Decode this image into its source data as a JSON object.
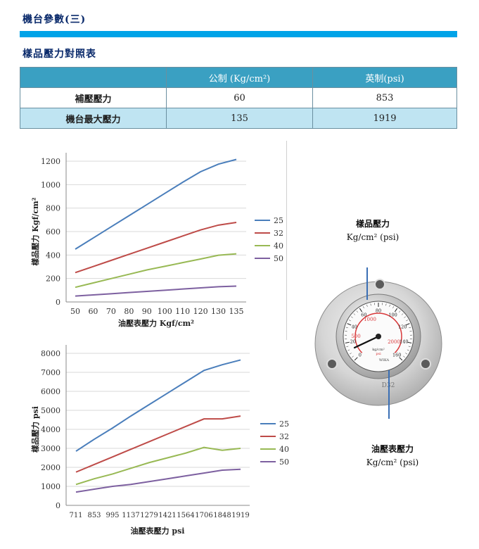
{
  "header": {
    "section_title": "機台參數(三)",
    "sub_title": "樣品壓力對照表"
  },
  "table": {
    "headers": [
      "",
      "公制 (Kg/cm²)",
      "英制(psi)"
    ],
    "rows": [
      {
        "label": "補壓壓力",
        "metric": "60",
        "imperial": "853"
      },
      {
        "label": "機台最大壓力",
        "metric": "135",
        "imperial": "1919"
      }
    ]
  },
  "colors": {
    "s25": "#4a7ebb",
    "s32": "#be4b48",
    "s40": "#98b954",
    "s50": "#7d60a0",
    "accent": "#00a3e8"
  },
  "chart_data": [
    {
      "type": "line",
      "x": [
        50,
        60,
        70,
        80,
        90,
        100,
        110,
        120,
        130,
        135
      ],
      "series": [
        {
          "name": "25",
          "values": [
            450,
            545,
            640,
            735,
            830,
            925,
            1020,
            1110,
            1175,
            1215
          ]
        },
        {
          "name": "32",
          "values": [
            250,
            302,
            354,
            406,
            458,
            510,
            562,
            614,
            655,
            678
          ]
        },
        {
          "name": "40",
          "values": [
            125,
            162,
            199,
            236,
            273,
            304,
            335,
            366,
            398,
            410
          ]
        },
        {
          "name": "50",
          "values": [
            50,
            60,
            70,
            80,
            90,
            100,
            110,
            120,
            130,
            135
          ]
        }
      ],
      "xlabel": "油壓表壓力 Kgf/cm²",
      "ylabel": "樣品壓力 Kgf/cm²",
      "ylim": [
        0,
        1200
      ],
      "yticks": [
        0,
        200,
        400,
        600,
        800,
        1000,
        1200
      ],
      "grid": "horizontal",
      "legend": "right"
    },
    {
      "type": "line",
      "x": [
        711,
        853,
        995,
        1137,
        1279,
        1421,
        1564,
        1706,
        1848,
        1919
      ],
      "series": [
        {
          "name": "25",
          "values": [
            2850,
            3480,
            4070,
            4700,
            5300,
            5900,
            6500,
            7100,
            7400,
            7650
          ]
        },
        {
          "name": "32",
          "values": [
            1750,
            2150,
            2550,
            2950,
            3350,
            3750,
            4150,
            4550,
            4550,
            4700
          ]
        },
        {
          "name": "40",
          "values": [
            1100,
            1400,
            1650,
            1950,
            2250,
            2500,
            2750,
            3050,
            2900,
            3000
          ]
        },
        {
          "name": "50",
          "values": [
            700,
            850,
            1000,
            1100,
            1250,
            1400,
            1550,
            1700,
            1850,
            1900
          ]
        }
      ],
      "xlabel": "油壓表壓力 psi",
      "ylabel": "樣品壓力 psi",
      "ylim": [
        0,
        8000
      ],
      "yticks": [
        0,
        1000,
        2000,
        3000,
        4000,
        5000,
        6000,
        7000,
        8000
      ],
      "grid": "horizontal",
      "legend": "right"
    }
  ],
  "gauge": {
    "top_label": "樣品壓力",
    "top_unit": "Kg/cm² (psi)",
    "bottom_label": "油壓表壓力",
    "bottom_unit": "Kg/cm² (psi)",
    "face_labels": [
      "1000",
      "500",
      "2000",
      "kg/cm²",
      "psi"
    ],
    "face_numbers": [
      "0",
      "20",
      "40",
      "60",
      "80",
      "100",
      "120",
      "140",
      "160"
    ],
    "brand": "WIKA",
    "model": "D32"
  }
}
